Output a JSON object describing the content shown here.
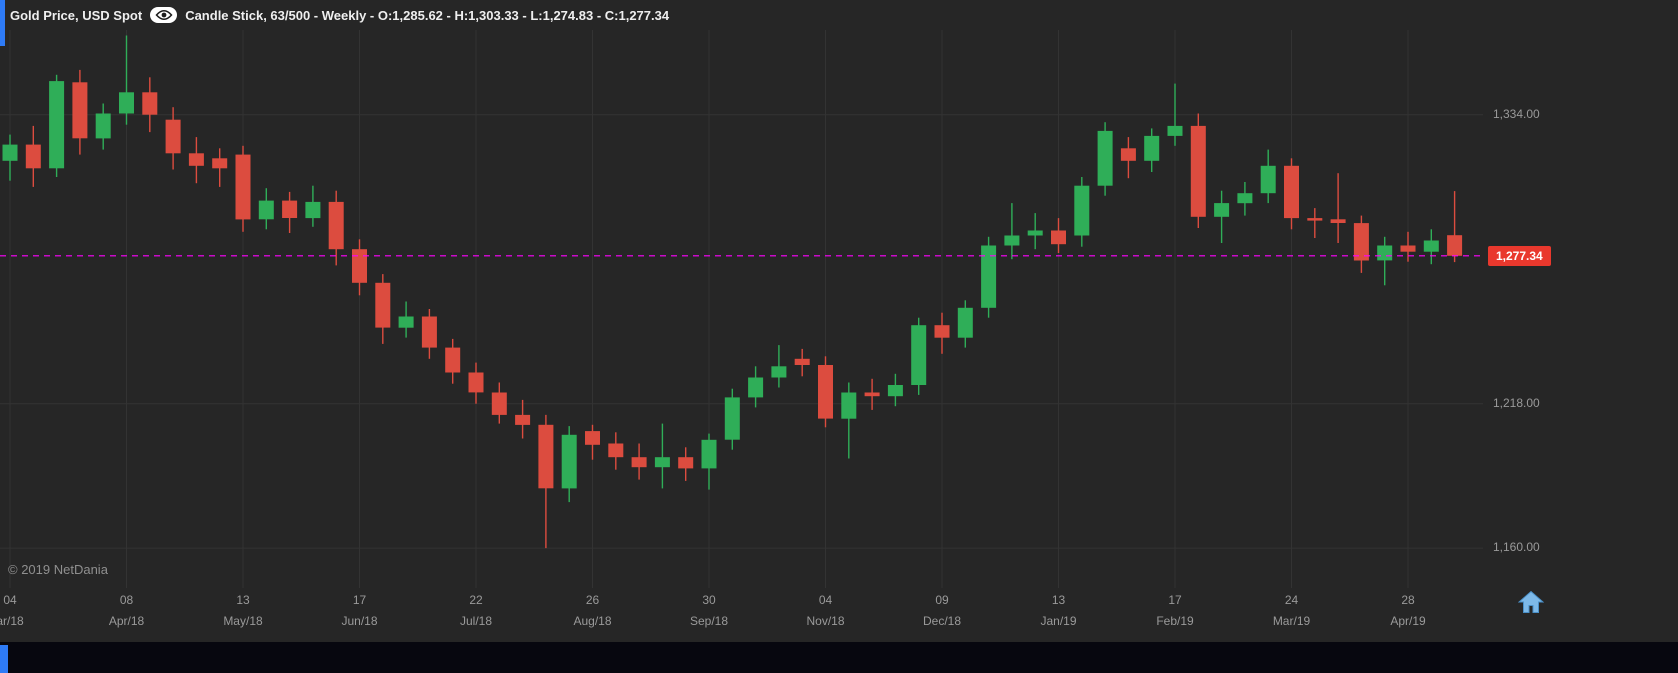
{
  "header": {
    "instrument": "Gold Price, USD Spot",
    "series_info": "Candle Stick, 63/500 - Weekly - O:1,285.62 - H:1,303.33 - L:1,274.83 - C:1,277.34"
  },
  "watermark": "© 2019 NetDania",
  "last_price_label": "1,277.34",
  "icons": {
    "eye": "eye-icon",
    "home": "home-icon"
  },
  "colors": {
    "background": "#262626",
    "up": "#2fae58",
    "down": "#dc4c3f",
    "grid": "#333333",
    "last_price_line": "#ff00ff",
    "badge_bg": "#e9382d",
    "axis_text": "#9a9a9a",
    "header_text": "#efefef",
    "bottom_bar": "#07070f",
    "home_icon": "#7db9e8",
    "accent_edge": "#2e7bf6"
  },
  "y_axis": {
    "labels": [
      {
        "price": 1334,
        "text": "1,334.00"
      },
      {
        "price": 1218,
        "text": "1,218.00"
      },
      {
        "price": 1160,
        "text": "1,160.00"
      }
    ]
  },
  "chart_data": {
    "type": "candlestick",
    "instrument": "Gold Price, USD Spot",
    "interval": "Weekly",
    "visible_candles": "63/500",
    "last_candle": {
      "open": 1285.62,
      "high": 1303.33,
      "low": 1274.83,
      "close": 1277.34
    },
    "last_price": 1277.34,
    "ylim": [
      1144,
      1368
    ],
    "y_gridlines": [
      1334,
      1218,
      1160
    ],
    "x_ticks": [
      {
        "candle_index": 0,
        "day": "04",
        "month": "ar/18"
      },
      {
        "candle_index": 5,
        "day": "08",
        "month": "Apr/18"
      },
      {
        "candle_index": 10,
        "day": "13",
        "month": "May/18"
      },
      {
        "candle_index": 15,
        "day": "17",
        "month": "Jun/18"
      },
      {
        "candle_index": 20,
        "day": "22",
        "month": "Jul/18"
      },
      {
        "candle_index": 25,
        "day": "26",
        "month": "Aug/18"
      },
      {
        "candle_index": 30,
        "day": "30",
        "month": "Sep/18"
      },
      {
        "candle_index": 35,
        "day": "04",
        "month": "Nov/18"
      },
      {
        "candle_index": 40,
        "day": "09",
        "month": "Dec/18"
      },
      {
        "candle_index": 45,
        "day": "13",
        "month": "Jan/19"
      },
      {
        "candle_index": 50,
        "day": "17",
        "month": "Feb/19"
      },
      {
        "candle_index": 55,
        "day": "24",
        "month": "Mar/19"
      },
      {
        "candle_index": 60,
        "day": "28",
        "month": "Apr/19"
      }
    ],
    "candles": [
      [
        1315.5,
        1326.0,
        1307.5,
        1322.0
      ],
      [
        1322.0,
        1329.5,
        1305.0,
        1312.5
      ],
      [
        1312.5,
        1350.0,
        1309.0,
        1347.5
      ],
      [
        1347.0,
        1352.0,
        1318.0,
        1324.5
      ],
      [
        1324.5,
        1338.5,
        1320.0,
        1334.5
      ],
      [
        1334.5,
        1365.8,
        1330.0,
        1343.0
      ],
      [
        1343.0,
        1349.0,
        1327.0,
        1334.0
      ],
      [
        1332.0,
        1337.0,
        1312.0,
        1318.5
      ],
      [
        1318.5,
        1325.0,
        1306.5,
        1313.5
      ],
      [
        1316.5,
        1320.5,
        1305.0,
        1312.5
      ],
      [
        1318.0,
        1321.5,
        1287.0,
        1292.0
      ],
      [
        1292.0,
        1304.5,
        1288.0,
        1299.5
      ],
      [
        1299.5,
        1303.0,
        1286.5,
        1292.5
      ],
      [
        1292.5,
        1305.5,
        1289.0,
        1299.0
      ],
      [
        1299.0,
        1303.5,
        1273.5,
        1280.0
      ],
      [
        1280.0,
        1284.0,
        1261.5,
        1266.5
      ],
      [
        1266.5,
        1270.0,
        1242.0,
        1248.5
      ],
      [
        1248.5,
        1259.0,
        1244.5,
        1253.0
      ],
      [
        1253.0,
        1256.0,
        1236.0,
        1240.5
      ],
      [
        1240.5,
        1244.0,
        1226.0,
        1230.5
      ],
      [
        1230.5,
        1234.5,
        1218.0,
        1222.5
      ],
      [
        1222.5,
        1226.5,
        1210.0,
        1213.5
      ],
      [
        1213.5,
        1219.5,
        1204.0,
        1209.5
      ],
      [
        1209.5,
        1213.5,
        1160.0,
        1184.0
      ],
      [
        1184.0,
        1209.0,
        1178.5,
        1205.5
      ],
      [
        1207.0,
        1209.5,
        1195.5,
        1201.5
      ],
      [
        1202.0,
        1206.5,
        1191.5,
        1196.5
      ],
      [
        1196.5,
        1202.0,
        1187.5,
        1192.5
      ],
      [
        1192.5,
        1210.0,
        1184.0,
        1196.5
      ],
      [
        1196.5,
        1200.5,
        1187.0,
        1192.0
      ],
      [
        1192.0,
        1206.0,
        1183.5,
        1203.5
      ],
      [
        1203.5,
        1224.0,
        1199.5,
        1220.5
      ],
      [
        1220.5,
        1233.0,
        1216.5,
        1228.5
      ],
      [
        1228.5,
        1241.5,
        1224.5,
        1233.0
      ],
      [
        1236.0,
        1240.0,
        1229.0,
        1233.5
      ],
      [
        1233.5,
        1237.0,
        1208.5,
        1212.0
      ],
      [
        1212.0,
        1226.5,
        1196.0,
        1222.5
      ],
      [
        1222.5,
        1228.0,
        1215.5,
        1221.0
      ],
      [
        1221.0,
        1230.0,
        1217.0,
        1225.5
      ],
      [
        1225.5,
        1252.5,
        1221.5,
        1249.5
      ],
      [
        1249.5,
        1254.5,
        1238.0,
        1244.5
      ],
      [
        1244.5,
        1259.5,
        1240.5,
        1256.5
      ],
      [
        1256.5,
        1285.0,
        1252.5,
        1281.5
      ],
      [
        1281.5,
        1298.5,
        1276.0,
        1285.5
      ],
      [
        1285.5,
        1294.5,
        1280.0,
        1287.5
      ],
      [
        1287.5,
        1292.5,
        1278.5,
        1282.0
      ],
      [
        1285.5,
        1309.0,
        1281.0,
        1305.5
      ],
      [
        1305.5,
        1331.0,
        1301.5,
        1327.5
      ],
      [
        1320.5,
        1325.0,
        1308.5,
        1315.5
      ],
      [
        1315.5,
        1328.5,
        1311.0,
        1325.5
      ],
      [
        1325.5,
        1346.5,
        1321.5,
        1329.5
      ],
      [
        1329.5,
        1334.5,
        1288.5,
        1293.0
      ],
      [
        1293.0,
        1303.5,
        1282.5,
        1298.5
      ],
      [
        1298.5,
        1307.0,
        1293.5,
        1302.5
      ],
      [
        1302.5,
        1320.0,
        1298.5,
        1313.5
      ],
      [
        1313.5,
        1316.5,
        1288.0,
        1292.5
      ],
      [
        1292.5,
        1296.5,
        1284.5,
        1291.5
      ],
      [
        1292.0,
        1310.5,
        1282.5,
        1290.5
      ],
      [
        1290.5,
        1293.5,
        1270.5,
        1275.5
      ],
      [
        1275.5,
        1285.0,
        1265.5,
        1281.5
      ],
      [
        1281.5,
        1287.0,
        1275.0,
        1279.0
      ],
      [
        1279.0,
        1288.0,
        1274.0,
        1283.5
      ],
      [
        1285.62,
        1303.33,
        1274.83,
        1277.34
      ]
    ]
  }
}
